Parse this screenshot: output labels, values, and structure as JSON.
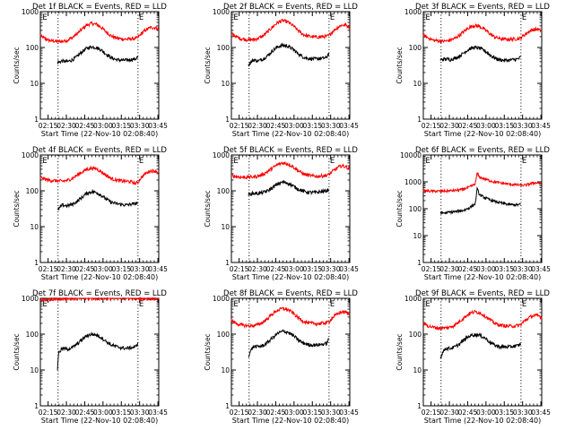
{
  "figure": {
    "xlabel": "Start Time (22-Nov-10 02:08:40)",
    "ylabel": "Counts/sec",
    "x_tick_labels": [
      "02:15",
      "02:30",
      "02:45",
      "03:00",
      "03:15",
      "03:30",
      "03:45"
    ],
    "y_tick_labels": [
      "1",
      "10",
      "100",
      "1000"
    ],
    "y_tick_labels_panel6": [
      "1",
      "10",
      "100",
      "1000",
      "10000"
    ],
    "marker_label": "E",
    "colors": {
      "events": "#000000",
      "lld": "#ff0000",
      "axes": "#000000"
    }
  },
  "chart_data": [
    {
      "type": "line",
      "title": "Det 1f BLACK = Events, RED = LLD",
      "xlabel": "Start Time (22-Nov-10 02:08:40)",
      "ylabel": "Counts/sec",
      "x_units": "minutes after 02:08:40",
      "xlim": [
        0,
        97
      ],
      "ylim": [
        1,
        1000
      ],
      "yscale": "log",
      "vlines": [
        14.5,
        80
      ],
      "series": [
        {
          "name": "LLD",
          "color": "#ff0000",
          "x": [
            0,
            4,
            8,
            14,
            18,
            22,
            26,
            30,
            34,
            38,
            42,
            46,
            50,
            54,
            58,
            62,
            66,
            70,
            74,
            78,
            80,
            82,
            86,
            90,
            94,
            97
          ],
          "y": [
            210,
            175,
            155,
            148,
            148,
            160,
            185,
            240,
            320,
            420,
            470,
            440,
            360,
            270,
            210,
            185,
            175,
            170,
            175,
            178,
            190,
            230,
            300,
            360,
            360,
            320
          ]
        },
        {
          "name": "Events",
          "color": "#000000",
          "x": [
            14,
            18,
            22,
            26,
            30,
            34,
            38,
            42,
            46,
            50,
            54,
            58,
            62,
            66,
            70,
            74,
            78,
            80
          ],
          "y": [
            38,
            42,
            40,
            45,
            55,
            75,
            95,
            105,
            100,
            85,
            65,
            52,
            46,
            44,
            44,
            46,
            48,
            55
          ]
        }
      ]
    },
    {
      "type": "line",
      "title": "Det 2f BLACK = Events, RED = LLD",
      "xlabel": "Start Time (22-Nov-10 02:08:40)",
      "ylabel": "Counts/sec",
      "x_units": "minutes after 02:08:40",
      "xlim": [
        0,
        97
      ],
      "ylim": [
        1,
        1000
      ],
      "yscale": "log",
      "vlines": [
        14.5,
        80
      ],
      "series": [
        {
          "name": "LLD",
          "color": "#ff0000",
          "x": [
            0,
            4,
            8,
            14,
            18,
            22,
            26,
            30,
            34,
            38,
            42,
            46,
            50,
            54,
            58,
            62,
            66,
            70,
            74,
            78,
            80,
            82,
            86,
            90,
            94,
            97
          ],
          "y": [
            240,
            200,
            175,
            165,
            165,
            180,
            210,
            280,
            380,
            500,
            560,
            520,
            420,
            310,
            240,
            210,
            200,
            195,
            200,
            205,
            215,
            260,
            340,
            420,
            420,
            370
          ]
        },
        {
          "name": "Events",
          "color": "#000000",
          "x": [
            14,
            18,
            22,
            26,
            30,
            34,
            38,
            42,
            46,
            50,
            54,
            58,
            62,
            66,
            70,
            74,
            78,
            80
          ],
          "y": [
            32,
            45,
            42,
            48,
            60,
            82,
            105,
            115,
            110,
            92,
            70,
            56,
            50,
            48,
            48,
            50,
            52,
            70
          ]
        }
      ]
    },
    {
      "type": "line",
      "title": "Det 3f BLACK = Events, RED = LLD",
      "xlabel": "Start Time (22-Nov-10 02:08:40)",
      "ylabel": "Counts/sec",
      "x_units": "minutes after 02:08:40",
      "xlim": [
        0,
        97
      ],
      "ylim": [
        1,
        1000
      ],
      "yscale": "log",
      "vlines": [
        14.5,
        80
      ],
      "series": [
        {
          "name": "LLD",
          "color": "#ff0000",
          "x": [
            0,
            4,
            8,
            14,
            18,
            22,
            26,
            30,
            34,
            38,
            42,
            46,
            50,
            54,
            58,
            62,
            66,
            70,
            74,
            78,
            80,
            82,
            86,
            90,
            94,
            97
          ],
          "y": [
            220,
            185,
            160,
            150,
            150,
            160,
            180,
            225,
            290,
            370,
            410,
            390,
            320,
            250,
            200,
            180,
            170,
            168,
            172,
            178,
            185,
            215,
            270,
            320,
            320,
            290
          ]
        },
        {
          "name": "Events",
          "color": "#000000",
          "x": [
            14,
            18,
            22,
            26,
            30,
            34,
            38,
            42,
            46,
            50,
            54,
            58,
            62,
            66,
            70,
            74,
            78,
            80
          ],
          "y": [
            45,
            48,
            46,
            50,
            58,
            75,
            92,
            100,
            96,
            82,
            64,
            52,
            46,
            44,
            44,
            46,
            48,
            55
          ]
        }
      ]
    },
    {
      "type": "line",
      "title": "Det 4f BLACK = Events, RED = LLD",
      "xlabel": "Start Time (22-Nov-10 02:08:40)",
      "ylabel": "Counts/sec",
      "x_units": "minutes after 02:08:40",
      "xlim": [
        0,
        97
      ],
      "ylim": [
        1,
        1000
      ],
      "yscale": "log",
      "vlines": [
        14.5,
        80
      ],
      "series": [
        {
          "name": "LLD",
          "color": "#ff0000",
          "x": [
            0,
            4,
            8,
            14,
            18,
            22,
            26,
            30,
            34,
            38,
            42,
            46,
            50,
            54,
            58,
            62,
            66,
            70,
            74,
            78,
            80,
            82,
            86,
            90,
            94,
            97
          ],
          "y": [
            240,
            210,
            195,
            190,
            185,
            195,
            220,
            270,
            330,
            400,
            430,
            410,
            340,
            270,
            220,
            200,
            190,
            185,
            180,
            160,
            175,
            220,
            300,
            360,
            360,
            330
          ]
        },
        {
          "name": "Events",
          "color": "#000000",
          "x": [
            14,
            18,
            22,
            26,
            30,
            34,
            38,
            42,
            46,
            50,
            54,
            58,
            62,
            66,
            70,
            74,
            78,
            80
          ],
          "y": [
            28,
            40,
            38,
            42,
            50,
            65,
            85,
            95,
            90,
            75,
            58,
            48,
            44,
            42,
            40,
            42,
            44,
            48
          ]
        }
      ]
    },
    {
      "type": "line",
      "title": "Det 5f BLACK = Events, RED = LLD",
      "xlabel": "Start Time (22-Nov-10 02:08:40)",
      "ylabel": "Counts/sec",
      "x_units": "minutes after 02:08:40",
      "xlim": [
        0,
        97
      ],
      "ylim": [
        1,
        1000
      ],
      "yscale": "log",
      "vlines": [
        14.5,
        80
      ],
      "series": [
        {
          "name": "LLD",
          "color": "#ff0000",
          "x": [
            0,
            4,
            8,
            14,
            18,
            22,
            26,
            30,
            34,
            38,
            42,
            46,
            50,
            54,
            58,
            62,
            66,
            70,
            74,
            78,
            80,
            82,
            86,
            90,
            94,
            97
          ],
          "y": [
            270,
            250,
            240,
            240,
            245,
            260,
            290,
            350,
            440,
            540,
            600,
            570,
            480,
            380,
            310,
            275,
            260,
            255,
            260,
            270,
            285,
            330,
            420,
            500,
            470,
            400
          ]
        },
        {
          "name": "Events",
          "color": "#000000",
          "x": [
            14,
            18,
            22,
            26,
            30,
            34,
            38,
            42,
            46,
            50,
            54,
            58,
            62,
            66,
            70,
            74,
            78,
            80
          ],
          "y": [
            80,
            85,
            85,
            90,
            100,
            125,
            155,
            175,
            165,
            140,
            115,
            100,
            92,
            90,
            90,
            95,
            100,
            110
          ]
        }
      ]
    },
    {
      "type": "line",
      "title": "Det 6f BLACK = Events, RED = LLD",
      "xlabel": "Start Time (22-Nov-10 02:08:40)",
      "ylabel": "Counts/sec",
      "x_units": "minutes after 02:08:40",
      "xlim": [
        0,
        97
      ],
      "ylim": [
        1,
        10000
      ],
      "yscale": "log",
      "vlines": [
        14.5,
        80
      ],
      "series": [
        {
          "name": "LLD",
          "color": "#ff0000",
          "x": [
            0,
            8,
            14,
            20,
            26,
            32,
            38,
            42,
            43,
            44,
            46,
            52,
            58,
            64,
            70,
            76,
            80,
            84,
            88,
            92,
            97
          ],
          "y": [
            460,
            450,
            450,
            460,
            480,
            520,
            640,
            800,
            1000,
            2100,
            1500,
            1200,
            1000,
            900,
            820,
            780,
            740,
            760,
            860,
            930,
            880
          ]
        },
        {
          "name": "Events",
          "color": "#000000",
          "x": [
            14,
            18,
            22,
            26,
            30,
            34,
            38,
            42,
            43,
            44,
            46,
            50,
            54,
            58,
            62,
            66,
            70,
            74,
            78,
            80
          ],
          "y": [
            70,
            70,
            75,
            78,
            82,
            90,
            110,
            145,
            180,
            550,
            330,
            260,
            220,
            190,
            170,
            155,
            145,
            140,
            140,
            145
          ]
        }
      ]
    },
    {
      "type": "line",
      "title": "Det 7f BLACK = Events, RED = LLD",
      "xlabel": "Start Time (22-Nov-10 02:08:40)",
      "ylabel": "Counts/sec",
      "x_units": "minutes after 02:08:40",
      "xlim": [
        0,
        97
      ],
      "ylim": [
        1,
        1000
      ],
      "yscale": "log",
      "vlines": [
        14.5,
        80
      ],
      "series": [
        {
          "name": "LLD",
          "color": "#ff0000",
          "x": [
            0,
            8,
            14,
            20,
            26,
            32,
            38,
            44,
            50,
            56,
            62,
            68,
            74,
            80,
            86,
            92,
            97
          ],
          "y": [
            900,
            950,
            970,
            1000,
            1000,
            1000,
            1000,
            1000,
            1000,
            1000,
            1000,
            1000,
            1000,
            1000,
            1000,
            1000,
            1000
          ]
        },
        {
          "name": "Events",
          "color": "#000000",
          "x": [
            14,
            15,
            18,
            22,
            26,
            30,
            34,
            38,
            42,
            46,
            50,
            54,
            58,
            62,
            66,
            70,
            74,
            78,
            80
          ],
          "y": [
            10,
            30,
            40,
            38,
            42,
            52,
            70,
            90,
            100,
            95,
            80,
            62,
            50,
            45,
            42,
            40,
            42,
            44,
            58
          ]
        }
      ]
    },
    {
      "type": "line",
      "title": "Det 8f BLACK = Events, RED = LLD",
      "xlabel": "Start Time (22-Nov-10 02:08:40)",
      "ylabel": "Counts/sec",
      "x_units": "minutes after 02:08:40",
      "xlim": [
        0,
        97
      ],
      "ylim": [
        1,
        1000
      ],
      "yscale": "log",
      "vlines": [
        14.5,
        80
      ],
      "series": [
        {
          "name": "LLD",
          "color": "#ff0000",
          "x": [
            0,
            4,
            8,
            14,
            18,
            22,
            26,
            30,
            34,
            38,
            42,
            46,
            50,
            54,
            58,
            62,
            66,
            70,
            74,
            78,
            80,
            82,
            86,
            90,
            94,
            97
          ],
          "y": [
            240,
            200,
            180,
            170,
            172,
            185,
            215,
            280,
            370,
            470,
            520,
            490,
            400,
            300,
            240,
            210,
            200,
            195,
            200,
            210,
            220,
            270,
            350,
            420,
            410,
            340
          ]
        },
        {
          "name": "Events",
          "color": "#000000",
          "x": [
            14,
            18,
            22,
            26,
            30,
            34,
            38,
            42,
            46,
            50,
            54,
            58,
            62,
            66,
            70,
            74,
            78,
            80
          ],
          "y": [
            25,
            45,
            45,
            48,
            60,
            80,
            105,
            120,
            115,
            95,
            72,
            58,
            52,
            50,
            50,
            52,
            55,
            75
          ]
        }
      ]
    },
    {
      "type": "line",
      "title": "Det 9f BLACK = Events, RED = LLD",
      "xlabel": "Start Time (22-Nov-10 02:08:40)",
      "ylabel": "Counts/sec",
      "x_units": "minutes after 02:08:40",
      "xlim": [
        0,
        97
      ],
      "ylim": [
        1,
        1000
      ],
      "yscale": "log",
      "vlines": [
        14.5,
        80
      ],
      "series": [
        {
          "name": "LLD",
          "color": "#ff0000",
          "x": [
            0,
            4,
            8,
            14,
            18,
            22,
            26,
            30,
            34,
            38,
            42,
            46,
            50,
            54,
            58,
            62,
            66,
            70,
            74,
            78,
            80,
            82,
            86,
            90,
            94,
            97
          ],
          "y": [
            200,
            170,
            155,
            148,
            148,
            158,
            180,
            230,
            300,
            380,
            420,
            400,
            330,
            260,
            205,
            182,
            172,
            168,
            170,
            175,
            185,
            220,
            280,
            330,
            330,
            295
          ]
        },
        {
          "name": "Events",
          "color": "#000000",
          "x": [
            14,
            18,
            22,
            26,
            30,
            34,
            38,
            42,
            46,
            50,
            54,
            58,
            62,
            66,
            70,
            74,
            78,
            80
          ],
          "y": [
            22,
            40,
            40,
            44,
            54,
            72,
            90,
            98,
            94,
            80,
            62,
            50,
            45,
            44,
            44,
            46,
            48,
            55
          ]
        }
      ]
    }
  ]
}
